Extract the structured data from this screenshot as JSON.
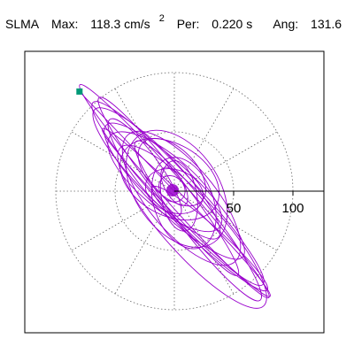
{
  "header": {
    "station": "SLMA",
    "max_label": "Max:",
    "max_value": "118.3 cm/s",
    "max_exp": "2",
    "per_label": "Per:",
    "per_value": "0.220 s",
    "ang_label": "Ang:",
    "ang_value": "131.6"
  },
  "chart_data": {
    "type": "line",
    "subtype": "polar-particle-motion",
    "title": "",
    "xlabel": "",
    "ylabel": "",
    "radial_ticks": [
      50,
      100
    ],
    "radial_tick_labels": [
      "50",
      "100"
    ],
    "rings": [
      50,
      100
    ],
    "spoke_angle_step_deg": 30,
    "range": [
      -125,
      125
    ],
    "grid": true,
    "colors": {
      "trace": "#9900cc",
      "marker": "#009977",
      "grid": "#666666",
      "axis": "#000000"
    },
    "max_point": {
      "x": -80,
      "y": 84
    },
    "ellipses": [
      {
        "a": 120,
        "b": 10,
        "angle": 131.6,
        "cx": 0,
        "cy": 0
      },
      {
        "a": 105,
        "b": 16,
        "angle": 133,
        "cx": 3,
        "cy": -2
      },
      {
        "a": 95,
        "b": 12,
        "angle": 128,
        "cx": -5,
        "cy": 4
      },
      {
        "a": 80,
        "b": 20,
        "angle": 136,
        "cx": 0,
        "cy": 0
      },
      {
        "a": 70,
        "b": 28,
        "angle": 130,
        "cx": 6,
        "cy": -6
      },
      {
        "a": 60,
        "b": 22,
        "angle": 140,
        "cx": -8,
        "cy": 8
      },
      {
        "a": 55,
        "b": 35,
        "angle": 125,
        "cx": 2,
        "cy": 2
      },
      {
        "a": 45,
        "b": 30,
        "angle": 150,
        "cx": -4,
        "cy": 10
      },
      {
        "a": 40,
        "b": 25,
        "angle": 110,
        "cx": 8,
        "cy": -10
      },
      {
        "a": 35,
        "b": 20,
        "angle": 135,
        "cx": -2,
        "cy": 16
      },
      {
        "a": 30,
        "b": 15,
        "angle": 100,
        "cx": 4,
        "cy": -4
      },
      {
        "a": 25,
        "b": 18,
        "angle": 160,
        "cx": 0,
        "cy": 0
      },
      {
        "a": 18,
        "b": 8,
        "angle": 120,
        "cx": 0,
        "cy": 4
      },
      {
        "a": 12,
        "b": 10,
        "angle": 135,
        "cx": -2,
        "cy": 2
      },
      {
        "a": 85,
        "b": 14,
        "angle": 128,
        "cx": 20,
        "cy": -25
      },
      {
        "a": 75,
        "b": 18,
        "angle": 134,
        "cx": -15,
        "cy": 15
      },
      {
        "a": 65,
        "b": 10,
        "angle": 138,
        "cx": 30,
        "cy": -40
      },
      {
        "a": 50,
        "b": 12,
        "angle": 126,
        "cx": -25,
        "cy": 20
      },
      {
        "a": 90,
        "b": 24,
        "angle": 132,
        "cx": 15,
        "cy": -30
      },
      {
        "a": 100,
        "b": 8,
        "angle": 135,
        "cx": 10,
        "cy": -18
      }
    ]
  }
}
